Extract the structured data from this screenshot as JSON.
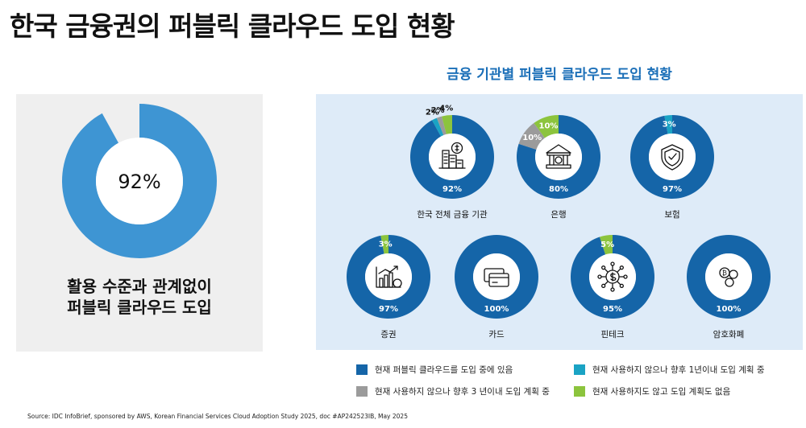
{
  "page": {
    "title": "한국 금융권의 퍼블릭 클라우드 도입 현황",
    "source": "Source: IDC InfoBrief, sponsored by AWS, Korean Financial Services Cloud Adoption Study 2025, doc #AP242523IB, May 2025"
  },
  "colors": {
    "using": "#1565a8",
    "plan1y": "#1aa3c4",
    "plan3y": "#9b9b9b",
    "noplan": "#8cc43d",
    "left_donut": "#3e95d3",
    "left_panel_bg": "#efefef",
    "right_panel_bg": "#deebf8"
  },
  "chart_data": [
    {
      "type": "pie",
      "variant": "donut",
      "center_label": "92%",
      "values": [
        92,
        8
      ],
      "caption_lines": [
        "활용 수준과 관계없이",
        "퍼블릭 클라우드 도입"
      ]
    },
    {
      "type": "pie",
      "variant": "donut-grid",
      "title": "금융 기관별 퍼블릭 클라우드 도입 현황",
      "categories": [
        "현재 퍼블릭 클라우드를 도입 중에 있음",
        "현재 사용하지 않으나 향후 1년이내 도입 계획 중",
        "현재 사용하지 않으나 향후 3 년이내 도입 계획 중",
        "현재 사용하지도 않고 도입 계획도 없음"
      ],
      "donuts": [
        {
          "label": "한국 전체 금융 기관",
          "icon": "building-icon",
          "values": [
            92,
            2,
            2,
            4
          ],
          "labels": [
            "92%",
            "2%",
            "2%",
            "4%"
          ]
        },
        {
          "label": "은행",
          "icon": "bank-icon",
          "values": [
            80,
            0,
            10,
            10
          ],
          "labels": [
            "80%",
            "",
            "10%",
            "10%"
          ]
        },
        {
          "label": "보험",
          "icon": "shield-icon",
          "values": [
            97,
            3,
            0,
            0
          ],
          "labels": [
            "97%",
            "3%",
            "",
            ""
          ]
        },
        {
          "label": "증권",
          "icon": "growth-chart-icon",
          "values": [
            97,
            0,
            0,
            3
          ],
          "labels": [
            "97%",
            "",
            "",
            "3%"
          ]
        },
        {
          "label": "카드",
          "icon": "credit-card-icon",
          "values": [
            100,
            0,
            0,
            0
          ],
          "labels": [
            "100%",
            "",
            "",
            ""
          ]
        },
        {
          "label": "핀테크",
          "icon": "fintech-network-icon",
          "values": [
            95,
            0,
            0,
            5
          ],
          "labels": [
            "95%",
            "",
            "",
            "5%"
          ]
        },
        {
          "label": "암호화폐",
          "icon": "crypto-coins-icon",
          "values": [
            100,
            0,
            0,
            0
          ],
          "labels": [
            "100%",
            "",
            "",
            ""
          ]
        }
      ]
    }
  ]
}
